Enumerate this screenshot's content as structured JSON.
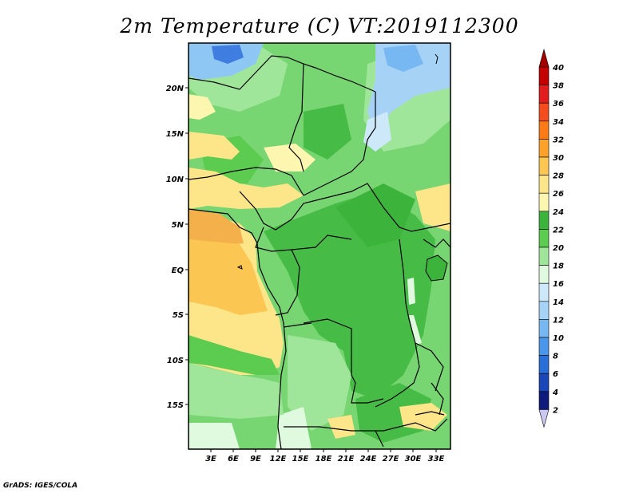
{
  "title": "2m Temperature (C) VT:2019112300",
  "credit": "GrADS: IGES/COLA",
  "map": {
    "lat_labels": [
      "20N",
      "15N",
      "10N",
      "5N",
      "EQ",
      "5S",
      "10S",
      "15S"
    ],
    "lon_labels": [
      "3E",
      "6E",
      "9E",
      "12E",
      "15E",
      "18E",
      "21E",
      "24E",
      "27E",
      "30E",
      "33E"
    ]
  },
  "colorbar": {
    "labels": [
      "40",
      "38",
      "36",
      "34",
      "32",
      "30",
      "28",
      "26",
      "24",
      "22",
      "20",
      "18",
      "16",
      "14",
      "12",
      "10",
      "8",
      "6",
      "4",
      "2"
    ],
    "colors": [
      "#a50000",
      "#c40000",
      "#e21c1c",
      "#f44c1c",
      "#fa7a16",
      "#fca22a",
      "#fcc652",
      "#fde58a",
      "#fdf6b0",
      "#3cb43c",
      "#5ccc50",
      "#a0e69a",
      "#e0fae0",
      "#cde8f8",
      "#a6d2f6",
      "#78b8f2",
      "#4a96ea",
      "#2a6ed8",
      "#1a46b8",
      "#0e1a7c",
      "#c8c8f0"
    ]
  }
}
